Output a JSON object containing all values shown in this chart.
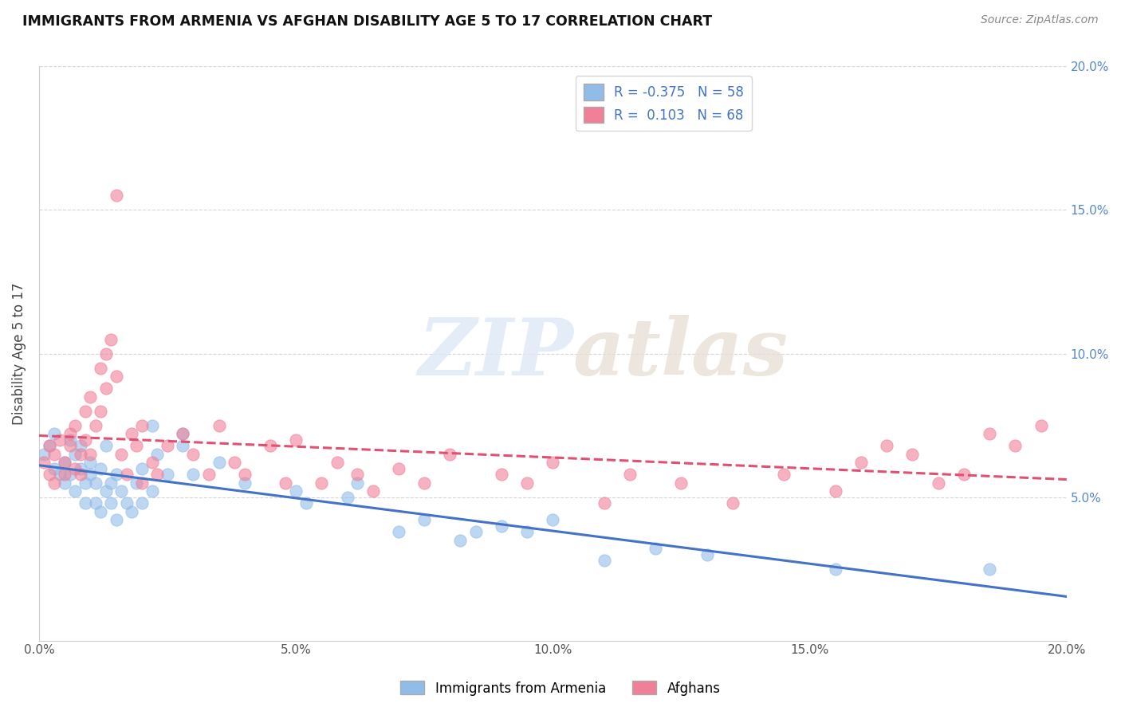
{
  "title": "IMMIGRANTS FROM ARMENIA VS AFGHAN DISABILITY AGE 5 TO 17 CORRELATION CHART",
  "source": "Source: ZipAtlas.com",
  "ylabel": "Disability Age 5 to 17",
  "xlim": [
    0.0,
    0.2
  ],
  "ylim": [
    0.0,
    0.2
  ],
  "xtick_vals": [
    0.0,
    0.05,
    0.1,
    0.15,
    0.2
  ],
  "xtick_labels": [
    "0.0%",
    "5.0%",
    "10.0%",
    "15.0%",
    "20.0%"
  ],
  "ytick_vals": [
    0.05,
    0.1,
    0.15,
    0.2
  ],
  "ytick_labels": [
    "5.0%",
    "10.0%",
    "15.0%",
    "20.0%"
  ],
  "right_ytick_labels_blue": [
    "5.0%",
    "10.0%",
    "15.0%",
    "20.0%"
  ],
  "legend_label_1": "R = -0.375   N = 58",
  "legend_label_2": "R =  0.103   N = 68",
  "armenia_color": "#92bce8",
  "afghan_color": "#f08098",
  "armenia_line_color": "#4472c4",
  "afghan_line_color": "#e05070",
  "watermark_zip": "ZIP",
  "watermark_atlas": "atlas",
  "armenia_scatter": [
    [
      0.001,
      0.065
    ],
    [
      0.002,
      0.068
    ],
    [
      0.003,
      0.072
    ],
    [
      0.003,
      0.06
    ],
    [
      0.004,
      0.058
    ],
    [
      0.005,
      0.062
    ],
    [
      0.005,
      0.055
    ],
    [
      0.006,
      0.07
    ],
    [
      0.006,
      0.058
    ],
    [
      0.007,
      0.065
    ],
    [
      0.007,
      0.052
    ],
    [
      0.008,
      0.06
    ],
    [
      0.008,
      0.068
    ],
    [
      0.009,
      0.055
    ],
    [
      0.009,
      0.048
    ],
    [
      0.01,
      0.058
    ],
    [
      0.01,
      0.062
    ],
    [
      0.011,
      0.048
    ],
    [
      0.011,
      0.055
    ],
    [
      0.012,
      0.06
    ],
    [
      0.012,
      0.045
    ],
    [
      0.013,
      0.052
    ],
    [
      0.013,
      0.068
    ],
    [
      0.014,
      0.055
    ],
    [
      0.014,
      0.048
    ],
    [
      0.015,
      0.058
    ],
    [
      0.015,
      0.042
    ],
    [
      0.016,
      0.052
    ],
    [
      0.017,
      0.048
    ],
    [
      0.018,
      0.045
    ],
    [
      0.019,
      0.055
    ],
    [
      0.02,
      0.06
    ],
    [
      0.02,
      0.048
    ],
    [
      0.022,
      0.052
    ],
    [
      0.022,
      0.075
    ],
    [
      0.023,
      0.065
    ],
    [
      0.025,
      0.058
    ],
    [
      0.028,
      0.068
    ],
    [
      0.028,
      0.072
    ],
    [
      0.03,
      0.058
    ],
    [
      0.035,
      0.062
    ],
    [
      0.04,
      0.055
    ],
    [
      0.05,
      0.052
    ],
    [
      0.052,
      0.048
    ],
    [
      0.06,
      0.05
    ],
    [
      0.062,
      0.055
    ],
    [
      0.07,
      0.038
    ],
    [
      0.075,
      0.042
    ],
    [
      0.082,
      0.035
    ],
    [
      0.085,
      0.038
    ],
    [
      0.09,
      0.04
    ],
    [
      0.095,
      0.038
    ],
    [
      0.1,
      0.042
    ],
    [
      0.11,
      0.028
    ],
    [
      0.12,
      0.032
    ],
    [
      0.13,
      0.03
    ],
    [
      0.155,
      0.025
    ],
    [
      0.185,
      0.025
    ]
  ],
  "afghan_scatter": [
    [
      0.001,
      0.062
    ],
    [
      0.002,
      0.058
    ],
    [
      0.002,
      0.068
    ],
    [
      0.003,
      0.065
    ],
    [
      0.003,
      0.055
    ],
    [
      0.004,
      0.07
    ],
    [
      0.005,
      0.058
    ],
    [
      0.005,
      0.062
    ],
    [
      0.006,
      0.068
    ],
    [
      0.006,
      0.072
    ],
    [
      0.007,
      0.06
    ],
    [
      0.007,
      0.075
    ],
    [
      0.008,
      0.065
    ],
    [
      0.008,
      0.058
    ],
    [
      0.009,
      0.08
    ],
    [
      0.009,
      0.07
    ],
    [
      0.01,
      0.085
    ],
    [
      0.01,
      0.065
    ],
    [
      0.011,
      0.075
    ],
    [
      0.012,
      0.095
    ],
    [
      0.012,
      0.08
    ],
    [
      0.013,
      0.1
    ],
    [
      0.013,
      0.088
    ],
    [
      0.014,
      0.105
    ],
    [
      0.015,
      0.092
    ],
    [
      0.015,
      0.155
    ],
    [
      0.016,
      0.065
    ],
    [
      0.017,
      0.058
    ],
    [
      0.018,
      0.072
    ],
    [
      0.019,
      0.068
    ],
    [
      0.02,
      0.075
    ],
    [
      0.02,
      0.055
    ],
    [
      0.022,
      0.062
    ],
    [
      0.023,
      0.058
    ],
    [
      0.025,
      0.068
    ],
    [
      0.028,
      0.072
    ],
    [
      0.03,
      0.065
    ],
    [
      0.033,
      0.058
    ],
    [
      0.035,
      0.075
    ],
    [
      0.038,
      0.062
    ],
    [
      0.04,
      0.058
    ],
    [
      0.045,
      0.068
    ],
    [
      0.048,
      0.055
    ],
    [
      0.05,
      0.07
    ],
    [
      0.055,
      0.055
    ],
    [
      0.058,
      0.062
    ],
    [
      0.062,
      0.058
    ],
    [
      0.065,
      0.052
    ],
    [
      0.07,
      0.06
    ],
    [
      0.075,
      0.055
    ],
    [
      0.08,
      0.065
    ],
    [
      0.09,
      0.058
    ],
    [
      0.095,
      0.055
    ],
    [
      0.1,
      0.062
    ],
    [
      0.11,
      0.048
    ],
    [
      0.115,
      0.058
    ],
    [
      0.125,
      0.055
    ],
    [
      0.135,
      0.048
    ],
    [
      0.145,
      0.058
    ],
    [
      0.155,
      0.052
    ],
    [
      0.16,
      0.062
    ],
    [
      0.165,
      0.068
    ],
    [
      0.17,
      0.065
    ],
    [
      0.175,
      0.055
    ],
    [
      0.18,
      0.058
    ],
    [
      0.185,
      0.072
    ],
    [
      0.19,
      0.068
    ],
    [
      0.195,
      0.075
    ]
  ]
}
